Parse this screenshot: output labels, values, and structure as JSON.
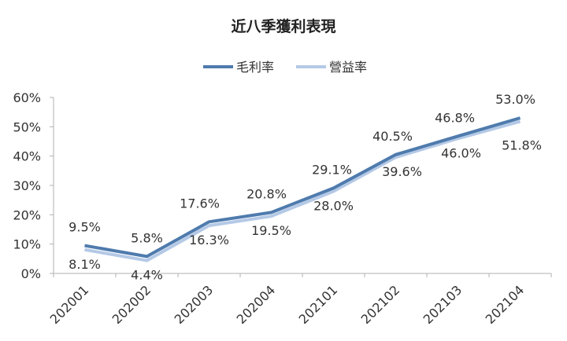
{
  "chart_data": {
    "type": "line",
    "title": "近八季獲利表現",
    "categories": [
      "202001",
      "202002",
      "202003",
      "202004",
      "202101",
      "202102",
      "202103",
      "202104"
    ],
    "series": [
      {
        "name": "毛利率",
        "values": [
          9.5,
          5.8,
          17.6,
          20.8,
          29.1,
          40.5,
          46.8,
          53.0
        ],
        "color": "#4f7bad",
        "labels": [
          "9.5%",
          "5.8%",
          "17.6%",
          "20.8%",
          "29.1%",
          "40.5%",
          "46.8%",
          "53.0%"
        ]
      },
      {
        "name": "營益率",
        "values": [
          8.1,
          4.4,
          16.3,
          19.5,
          28.0,
          39.6,
          46.0,
          51.8
        ],
        "color": "#b4c9e6",
        "labels": [
          "8.1%",
          "4.4%",
          "16.3%",
          "19.5%",
          "28.0%",
          "39.6%",
          "46.0%",
          "51.8%"
        ]
      }
    ],
    "ylim": [
      0,
      60
    ],
    "yticks": [
      "0%",
      "10%",
      "20%",
      "30%",
      "40%",
      "50%",
      "60%"
    ],
    "ytick_values": [
      0,
      10,
      20,
      30,
      40,
      50,
      60
    ],
    "legend_position": "top-center",
    "grid": false
  }
}
